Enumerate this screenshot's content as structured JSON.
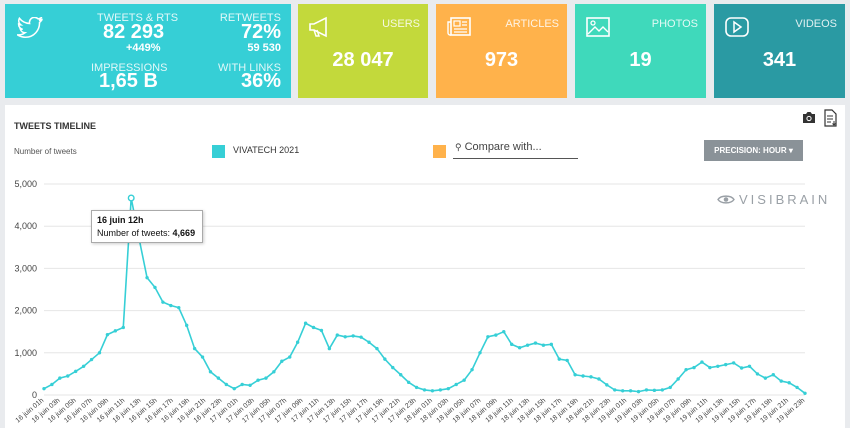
{
  "stats": {
    "tweets_rts": {
      "label": "TWEETS & RTS",
      "value": "82 293",
      "delta": "+449%"
    },
    "retweets": {
      "label": "RETWEETS",
      "value": "72%",
      "sub": "59 530"
    },
    "impressions": {
      "label": "IMPRESSIONS",
      "value": "1,65 B"
    },
    "with_links": {
      "label": "WITH LINKS",
      "value": "36%"
    },
    "users": {
      "label": "USERS",
      "value": "28 047"
    },
    "articles": {
      "label": "ARTICLES",
      "value": "973"
    },
    "photos": {
      "label": "PHOTOS",
      "value": "19"
    },
    "videos": {
      "label": "VIDEOS",
      "value": "341"
    }
  },
  "panel": {
    "title": "TWEETS TIMELINE",
    "y_axis_label": "Number of tweets",
    "series_name": "VIVATECH 2021",
    "compare_placeholder": "Compare with...",
    "precision_label": "PRECISION: HOUR",
    "watermark": "VISIBRAIN"
  },
  "tooltip": {
    "title": "16 juin 12h",
    "label": "Number of tweets:",
    "value": "4,669"
  },
  "colors": {
    "series": "#36cfd6",
    "compare": "#ffb24b"
  },
  "chart_data": {
    "type": "line",
    "title": "TWEETS TIMELINE",
    "ylabel": "Number of tweets",
    "ylim": [
      0,
      5000
    ],
    "yticks": [
      "0",
      "1,000",
      "2,000",
      "3,000",
      "4,000",
      "5,000"
    ],
    "xtick_labels": [
      "16 juin 01h",
      "16 juin 03h",
      "16 juin 05h",
      "16 juin 07h",
      "16 juin 09h",
      "16 juin 11h",
      "16 juin 13h",
      "16 juin 15h",
      "16 juin 17h",
      "16 juin 19h",
      "16 juin 21h",
      "16 juin 23h",
      "17 juin 01h",
      "17 juin 03h",
      "17 juin 05h",
      "17 juin 07h",
      "17 juin 09h",
      "17 juin 11h",
      "17 juin 13h",
      "17 juin 15h",
      "17 juin 17h",
      "17 juin 19h",
      "17 juin 21h",
      "17 juin 23h",
      "18 juin 01h",
      "18 juin 03h",
      "18 juin 05h",
      "18 juin 07h",
      "18 juin 09h",
      "18 juin 11h",
      "18 juin 13h",
      "18 juin 15h",
      "18 juin 17h",
      "18 juin 19h",
      "18 juin 21h",
      "18 juin 23h",
      "19 juin 01h",
      "19 juin 03h",
      "19 juin 05h",
      "19 juin 07h",
      "19 juin 09h",
      "19 juin 11h",
      "19 juin 13h",
      "19 juin 15h",
      "19 juin 17h",
      "19 juin 19h",
      "19 juin 21h",
      "19 juin 23h"
    ],
    "series": [
      {
        "name": "VIVATECH 2021",
        "values": [
          150,
          250,
          400,
          450,
          560,
          680,
          840,
          1000,
          1430,
          1520,
          1600,
          4669,
          3700,
          2780,
          2550,
          2200,
          2120,
          2070,
          1650,
          1100,
          900,
          550,
          400,
          250,
          150,
          250,
          230,
          350,
          400,
          550,
          800,
          900,
          1250,
          1700,
          1600,
          1530,
          1100,
          1420,
          1380,
          1400,
          1370,
          1250,
          1100,
          850,
          650,
          480,
          300,
          180,
          120,
          100,
          120,
          150,
          250,
          350,
          600,
          1000,
          1380,
          1420,
          1500,
          1200,
          1120,
          1180,
          1230,
          1180,
          1200,
          850,
          820,
          480,
          450,
          430,
          380,
          240,
          120,
          100,
          100,
          80,
          120,
          110,
          120,
          180,
          380,
          600,
          650,
          780,
          650,
          680,
          720,
          760,
          640,
          680,
          500,
          400,
          480,
          330,
          290,
          180,
          40
        ]
      }
    ]
  }
}
